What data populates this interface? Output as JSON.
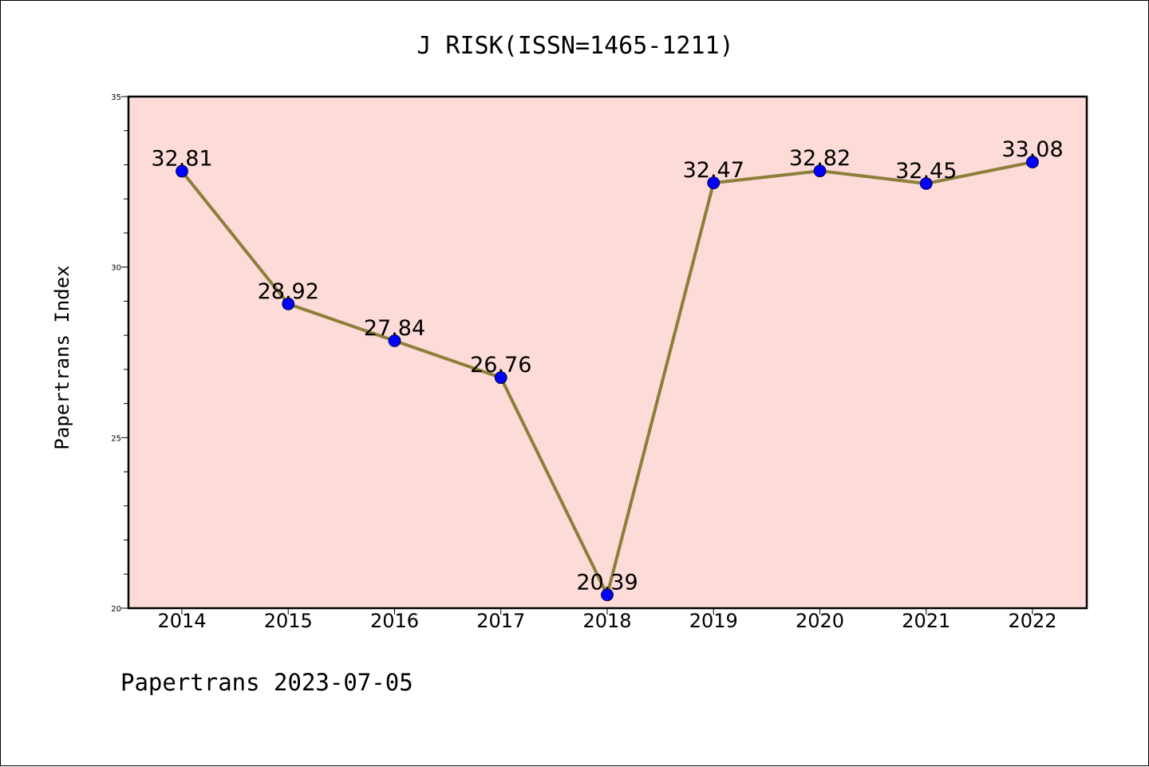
{
  "chart_data": {
    "type": "line",
    "title": "J RISK(ISSN=1465-1211)",
    "ylabel": "Papertrans Index",
    "xlabel": "",
    "categories": [
      "2014",
      "2015",
      "2016",
      "2017",
      "2018",
      "2019",
      "2020",
      "2021",
      "2022"
    ],
    "values": [
      32.81,
      28.92,
      27.84,
      26.76,
      20.39,
      32.47,
      32.82,
      32.45,
      33.08
    ],
    "data_labels": [
      "32.81",
      "28.92",
      "27.84",
      "26.76",
      "20.39",
      "32.47",
      "32.82",
      "32.45",
      "33.08"
    ],
    "ylim": [
      20,
      35
    ],
    "yticks": [
      20,
      25,
      30,
      35
    ],
    "grid": false,
    "colors": {
      "plot_background": "#fddbd8",
      "line": "#8c7f3a",
      "marker": "#0000ff",
      "frame": "#000000"
    },
    "footer": "Papertrans 2023-07-05"
  }
}
